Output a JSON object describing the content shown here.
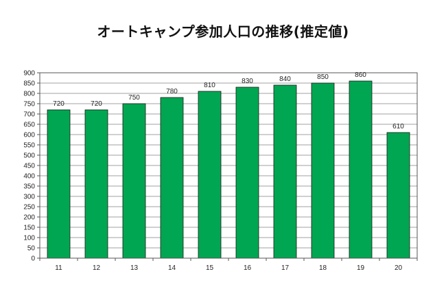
{
  "chart_data": {
    "type": "bar",
    "title": "オートキャンプ参加人口の推移(推定値)",
    "xlabel": "",
    "ylabel": "",
    "categories": [
      "11",
      "12",
      "13",
      "14",
      "15",
      "16",
      "17",
      "18",
      "19",
      "20"
    ],
    "series": [
      {
        "values": [
          720,
          720,
          750,
          780,
          810,
          830,
          840,
          850,
          860,
          610
        ],
        "labels": [
          "720",
          "720",
          "750",
          "780",
          "810",
          "830",
          "840",
          "850",
          "860",
          "610"
        ]
      }
    ],
    "ylim": [
      0,
      900
    ],
    "yticks": [
      "0",
      "50",
      "100",
      "150",
      "200",
      "250",
      "300",
      "350",
      "400",
      "450",
      "500",
      "550",
      "600",
      "650",
      "700",
      "750",
      "800",
      "850",
      "900"
    ],
    "grid": true,
    "legend": "none",
    "colors": {
      "bar": "#00a651",
      "bar_outline": "#1a1a1a",
      "grid": "#a0a0a0",
      "axis": "#555555"
    }
  }
}
